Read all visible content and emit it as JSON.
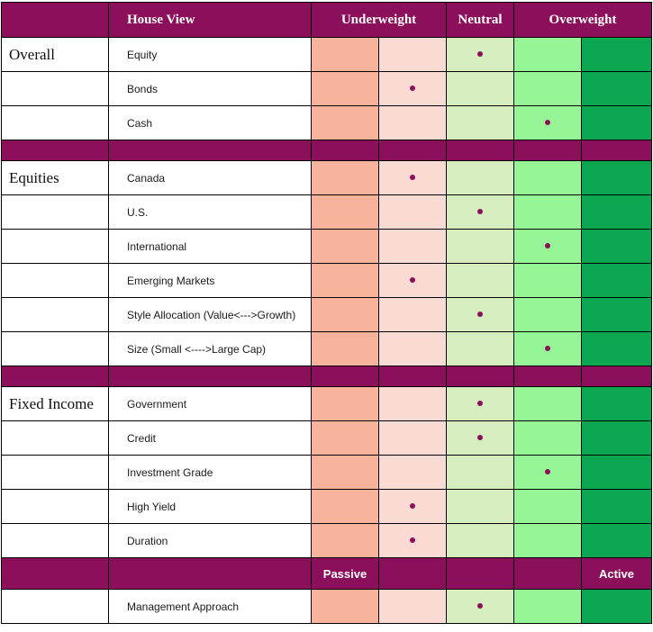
{
  "colors": {
    "magenta": "#8B0F5A",
    "underweight_strong": "#F7B39B",
    "underweight_light": "#FADBD3",
    "neutral": "#D5EDBF",
    "overweight_light": "#96F596",
    "overweight_strong": "#0BA64F",
    "dot": "#8B0F5A",
    "border": "#000000"
  },
  "chart_data": {
    "type": "heatmap",
    "title": "House View",
    "column_headers": [
      "Underweight",
      "Neutral",
      "Overweight"
    ],
    "position_scale": [
      "underweight-strong",
      "underweight-mild",
      "neutral",
      "overweight-mild",
      "overweight-strong"
    ],
    "legend_position": "top",
    "sections": [
      {
        "name": "Overall",
        "rows": [
          {
            "label": "Equity",
            "position": 3
          },
          {
            "label": "Bonds",
            "position": 2
          },
          {
            "label": "Cash",
            "position": 4
          }
        ]
      },
      {
        "name": "Equities",
        "rows": [
          {
            "label": "Canada",
            "position": 2
          },
          {
            "label": "U.S.",
            "position": 3
          },
          {
            "label": "International",
            "position": 4
          },
          {
            "label": "Emerging Markets",
            "position": 2
          },
          {
            "label": "Style Allocation (Value<--->Growth)",
            "position": 3
          },
          {
            "label": "Size (Small <---->Large Cap)",
            "position": 4
          }
        ]
      },
      {
        "name": "Fixed Income",
        "rows": [
          {
            "label": "Government",
            "position": 3
          },
          {
            "label": "Credit",
            "position": 3
          },
          {
            "label": "Investment Grade",
            "position": 4
          },
          {
            "label": "High Yield",
            "position": 2
          },
          {
            "label": "Duration",
            "position": 2
          }
        ]
      },
      {
        "name": "",
        "rows": [
          {
            "label": "Management Approach",
            "position": 3
          }
        ]
      }
    ],
    "footer": {
      "passive": "Passive",
      "active": "Active"
    }
  }
}
